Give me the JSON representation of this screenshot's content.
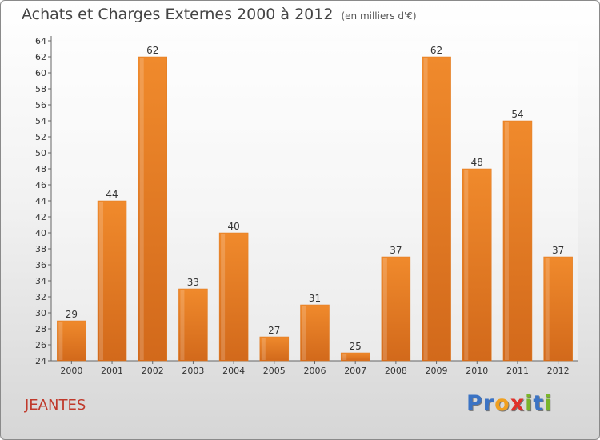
{
  "chart_data": {
    "type": "bar",
    "title": "Achats et Charges Externes 2000 à 2012",
    "subtitle": "(en milliers d'€)",
    "xlabel": "",
    "ylabel": "",
    "categories": [
      "2000",
      "2001",
      "2002",
      "2003",
      "2004",
      "2005",
      "2006",
      "2007",
      "2008",
      "2009",
      "2010",
      "2011",
      "2012"
    ],
    "values": [
      29,
      44,
      62,
      33,
      40,
      27,
      31,
      25,
      37,
      62,
      48,
      54,
      37
    ],
    "ylim": [
      24,
      64
    ],
    "yticks": [
      24,
      26,
      28,
      30,
      32,
      34,
      36,
      38,
      40,
      42,
      44,
      46,
      48,
      50,
      52,
      54,
      56,
      58,
      60,
      62,
      64
    ],
    "grid": false,
    "data_labels": true,
    "bar_color": "#f08a2c",
    "bar_color_dark": "#d2691b"
  },
  "footer": {
    "town": "JEANTES",
    "town_color": "#c0392b",
    "logo_letters": [
      {
        "ch": "P",
        "color": "#3b73c4"
      },
      {
        "ch": "r",
        "color": "#3b73c4"
      },
      {
        "ch": "o",
        "color": "#f0a020"
      },
      {
        "ch": "x",
        "color": "#e0302a"
      },
      {
        "ch": "i",
        "color": "#7ab52b"
      },
      {
        "ch": "t",
        "color": "#3b73c4"
      },
      {
        "ch": "i",
        "color": "#7ab52b"
      }
    ]
  }
}
